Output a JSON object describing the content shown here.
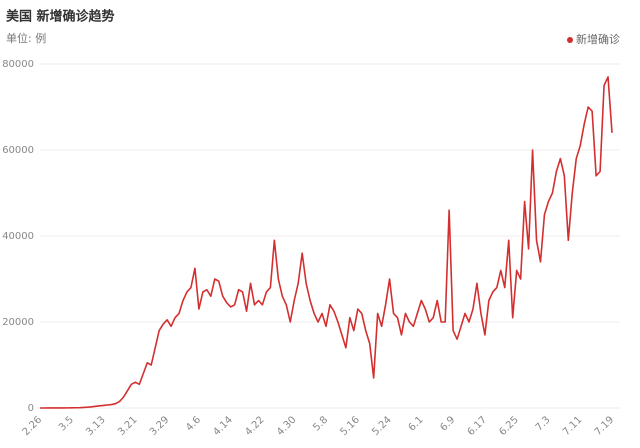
{
  "chart_data": {
    "type": "line",
    "title": "美国 新增确诊趋势",
    "subtitle": "单位: 例",
    "categories": [
      "2.26",
      null,
      null,
      null,
      null,
      null,
      null,
      null,
      "3.5",
      null,
      null,
      null,
      null,
      null,
      null,
      null,
      "3.13",
      null,
      null,
      null,
      null,
      null,
      null,
      null,
      "3.21",
      null,
      null,
      null,
      null,
      null,
      null,
      null,
      "3.29",
      null,
      null,
      null,
      null,
      null,
      null,
      null,
      "4.6",
      null,
      null,
      null,
      null,
      null,
      null,
      null,
      "4.14",
      null,
      null,
      null,
      null,
      null,
      null,
      null,
      "4.22",
      null,
      null,
      null,
      null,
      null,
      null,
      null,
      "4.30",
      null,
      null,
      null,
      null,
      null,
      null,
      null,
      "5.8",
      null,
      null,
      null,
      null,
      null,
      null,
      null,
      "5.16",
      null,
      null,
      null,
      null,
      null,
      null,
      null,
      "5.24",
      null,
      null,
      null,
      null,
      null,
      null,
      null,
      "6.1",
      null,
      null,
      null,
      null,
      null,
      null,
      null,
      "6.9",
      null,
      null,
      null,
      null,
      null,
      null,
      null,
      "6.17",
      null,
      null,
      null,
      null,
      null,
      null,
      null,
      "6.25",
      null,
      null,
      null,
      null,
      null,
      null,
      null,
      "7.3",
      null,
      null,
      null,
      null,
      null,
      null,
      null,
      "7.11",
      null,
      null,
      null,
      null,
      null,
      null,
      null,
      "7.19"
    ],
    "series": [
      {
        "name": "新增确诊",
        "color": "#d42f2f",
        "values": [
          3,
          0,
          6,
          4,
          7,
          14,
          20,
          30,
          40,
          60,
          80,
          120,
          180,
          270,
          400,
          500,
          600,
          700,
          800,
          1000,
          1500,
          2500,
          4000,
          5500,
          6000,
          5500,
          8000,
          10500,
          10000,
          14000,
          18000,
          19500,
          20500,
          19000,
          21000,
          22000,
          25000,
          27000,
          28000,
          32500,
          23000,
          27000,
          27500,
          26000,
          30000,
          29500,
          26000,
          24500,
          23500,
          24000,
          27500,
          27000,
          22500,
          29000,
          24000,
          25000,
          24000,
          27000,
          28000,
          39000,
          30000,
          26000,
          24000,
          20000,
          25000,
          29000,
          36000,
          29000,
          25000,
          22000,
          20000,
          22000,
          19000,
          24000,
          22500,
          20000,
          17000,
          14000,
          21000,
          18000,
          23000,
          22000,
          18000,
          15000,
          7000,
          22000,
          19000,
          24000,
          30000,
          22000,
          21000,
          17000,
          22000,
          20000,
          19000,
          22000,
          25000,
          23000,
          20000,
          21000,
          25000,
          20000,
          20000,
          46000,
          18000,
          16000,
          19000,
          22000,
          20000,
          23000,
          29000,
          22000,
          17000,
          25000,
          27000,
          28000,
          32000,
          28000,
          39000,
          21000,
          32000,
          30000,
          48000,
          37000,
          60000,
          39000,
          34000,
          45000,
          48000,
          50000,
          55000,
          58000,
          54000,
          39000,
          50000,
          58000,
          61000,
          66000,
          70000,
          69000,
          54000,
          55000,
          75000,
          77000,
          64000
        ]
      }
    ],
    "ylim": [
      0,
      80000
    ],
    "yticks": [
      0,
      20000,
      40000,
      60000,
      80000
    ],
    "grid": true,
    "legend": "top-right"
  }
}
